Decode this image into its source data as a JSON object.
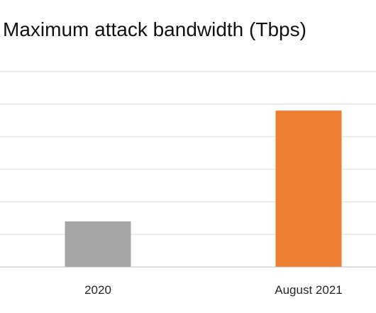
{
  "chart_data": {
    "type": "bar",
    "title": "Maximum attack bandwidth (Tbps)",
    "xlabel": "",
    "ylabel": "",
    "categories": [
      "2020",
      "August 2021"
    ],
    "values": [
      1.4,
      4.8
    ],
    "ylim": [
      0,
      6
    ],
    "grid": true,
    "colors": [
      "#a5a5a5",
      "#ed7d31"
    ],
    "grid_color": "#d9d9d9",
    "axis_color": "#bfbfbf"
  }
}
